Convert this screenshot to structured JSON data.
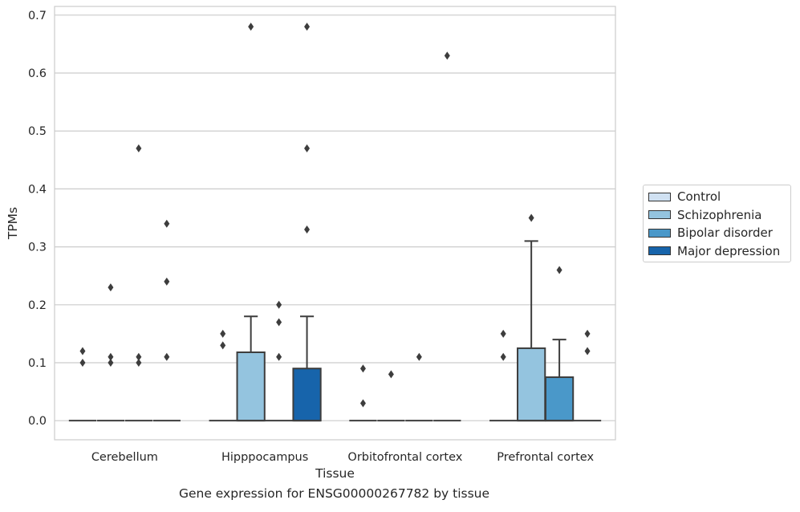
{
  "caption": "Gene expression for ENSG00000267782 by tissue",
  "chart_data": {
    "type": "box",
    "xlabel": "Tissue",
    "ylabel": "TPMs",
    "ylim": [
      -0.033,
      0.715
    ],
    "yticks": [
      0.0,
      0.1,
      0.2,
      0.3,
      0.4,
      0.5,
      0.6,
      0.7
    ],
    "ytick_labels": [
      "0.0",
      "0.1",
      "0.2",
      "0.3",
      "0.4",
      "0.5",
      "0.6",
      "0.7"
    ],
    "grid": "horizontal",
    "legend_position": "right",
    "categories": [
      "Cerebellum",
      "Hipppocampus",
      "Orbitofrontal cortex",
      "Prefrontal cortex"
    ],
    "series": [
      {
        "name": "Control",
        "color": "#d0e1f2",
        "boxes": [
          {
            "q1": 0,
            "median": 0,
            "q3": 0,
            "whislo": 0,
            "whishi": 0,
            "fliers": [
              0.1,
              0.12
            ]
          },
          {
            "q1": 0,
            "median": 0,
            "q3": 0,
            "whislo": 0,
            "whishi": 0,
            "fliers": [
              0.13,
              0.15
            ]
          },
          {
            "q1": 0,
            "median": 0,
            "q3": 0,
            "whislo": 0,
            "whishi": 0,
            "fliers": [
              0.03,
              0.09
            ]
          },
          {
            "q1": 0,
            "median": 0,
            "q3": 0,
            "whislo": 0,
            "whishi": 0,
            "fliers": [
              0.11,
              0.15
            ]
          }
        ]
      },
      {
        "name": "Schizophrenia",
        "color": "#94c4df",
        "boxes": [
          {
            "q1": 0,
            "median": 0,
            "q3": 0,
            "whislo": 0,
            "whishi": 0,
            "fliers": [
              0.1,
              0.11,
              0.23
            ]
          },
          {
            "q1": 0,
            "median": 0,
            "q3": 0.118,
            "whislo": 0,
            "whishi": 0.18,
            "fliers": [
              0.68
            ]
          },
          {
            "q1": 0,
            "median": 0,
            "q3": 0,
            "whislo": 0,
            "whishi": 0,
            "fliers": [
              0.08
            ]
          },
          {
            "q1": 0,
            "median": 0,
            "q3": 0.125,
            "whislo": 0,
            "whishi": 0.31,
            "fliers": [
              0.35
            ]
          }
        ]
      },
      {
        "name": "Bipolar disorder",
        "color": "#4a98c9",
        "boxes": [
          {
            "q1": 0,
            "median": 0,
            "q3": 0,
            "whislo": 0,
            "whishi": 0,
            "fliers": [
              0.1,
              0.11,
              0.47
            ]
          },
          {
            "q1": 0,
            "median": 0,
            "q3": 0,
            "whislo": 0,
            "whishi": 0,
            "fliers": [
              0.11,
              0.17,
              0.2
            ]
          },
          {
            "q1": 0,
            "median": 0,
            "q3": 0,
            "whislo": 0,
            "whishi": 0,
            "fliers": [
              0.11
            ]
          },
          {
            "q1": 0,
            "median": 0,
            "q3": 0.075,
            "whislo": 0,
            "whishi": 0.14,
            "fliers": [
              0.26
            ]
          }
        ]
      },
      {
        "name": "Major depression",
        "color": "#1764ab",
        "boxes": [
          {
            "q1": 0,
            "median": 0,
            "q3": 0,
            "whislo": 0,
            "whishi": 0,
            "fliers": [
              0.11,
              0.24,
              0.34
            ]
          },
          {
            "q1": 0,
            "median": 0,
            "q3": 0.09,
            "whislo": 0,
            "whishi": 0.18,
            "fliers": [
              0.33,
              0.47,
              0.68
            ]
          },
          {
            "q1": 0,
            "median": 0,
            "q3": 0,
            "whislo": 0,
            "whishi": 0,
            "fliers": [
              0.63
            ]
          },
          {
            "q1": 0,
            "median": 0,
            "q3": 0,
            "whislo": 0,
            "whishi": 0,
            "fliers": [
              0.12,
              0.15
            ]
          }
        ]
      }
    ]
  }
}
